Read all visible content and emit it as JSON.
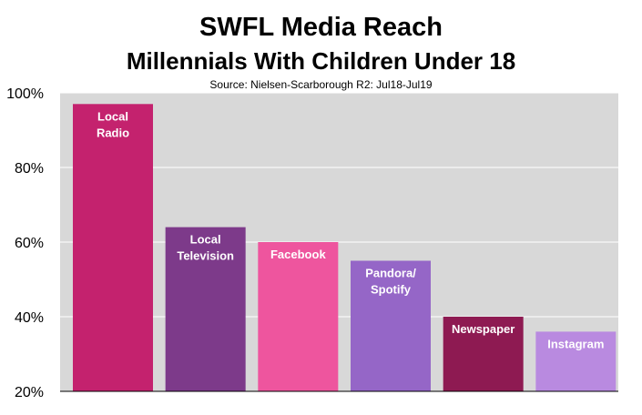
{
  "chart_data": {
    "type": "bar",
    "title": "SWFL Media Reach",
    "subtitle": "Millennials With Children Under 18",
    "source": "Source: Nielsen-Scarborough R2: Jul18-Jul19",
    "xlabel": "",
    "ylabel": "",
    "ylim": [
      20,
      100
    ],
    "yticks": [
      20,
      40,
      60,
      80,
      100
    ],
    "ytick_labels": [
      "20%",
      "40%",
      "60%",
      "80%",
      "100%"
    ],
    "grid": true,
    "legend": "none",
    "categories": [
      [
        "Local",
        "Radio"
      ],
      [
        "Local",
        "Television"
      ],
      [
        "Facebook"
      ],
      [
        "Pandora/",
        "Spotify"
      ],
      [
        "Newspaper"
      ],
      [
        "Instagram"
      ]
    ],
    "values": [
      97,
      64,
      60,
      55,
      40,
      36
    ],
    "colors": [
      "#c4226e",
      "#7d3a8a",
      "#ee559e",
      "#9566c7",
      "#8e1a52",
      "#b98ae0"
    ],
    "plot_background": "#d8d8d8",
    "grid_color": "#ffffff"
  }
}
